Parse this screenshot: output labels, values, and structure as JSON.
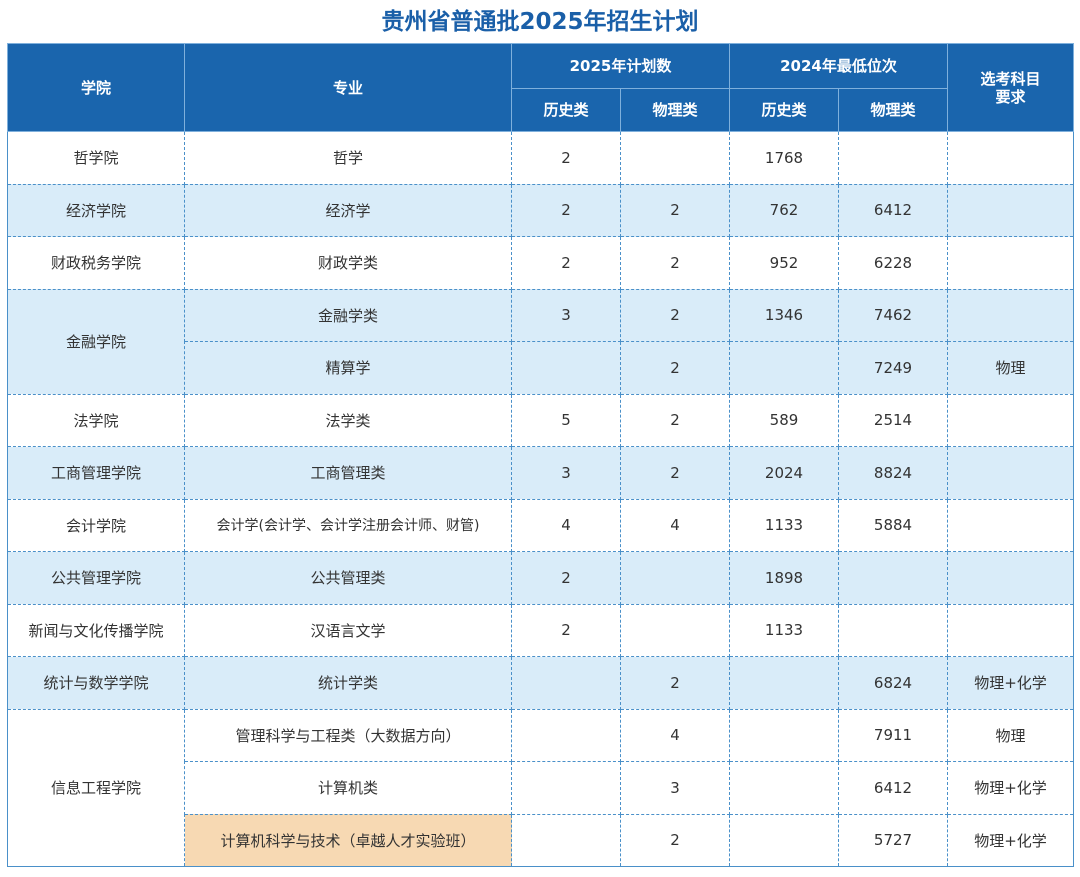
{
  "title": "贵州省普通批2025年招生计划",
  "header": {
    "college": "学院",
    "major": "专业",
    "plan_group": "2025年计划数",
    "rank_group": "2024年最低位次",
    "plan_history": "历史类",
    "plan_physics": "物理类",
    "rank_history": "历史类",
    "rank_physics": "物理类",
    "subject_req": "选考科目\n要求"
  },
  "rows": [
    {
      "college": "哲学院",
      "major": "哲学",
      "plan_h": "2",
      "plan_p": "",
      "rank_h": "1768",
      "rank_p": "",
      "req": ""
    },
    {
      "college": "经济学院",
      "major": "经济学",
      "plan_h": "2",
      "plan_p": "2",
      "rank_h": "762",
      "rank_p": "6412",
      "req": ""
    },
    {
      "college": "财政税务学院",
      "major": "财政学类",
      "plan_h": "2",
      "plan_p": "2",
      "rank_h": "952",
      "rank_p": "6228",
      "req": ""
    },
    {
      "college": "金融学院",
      "major": "金融学类",
      "plan_h": "3",
      "plan_p": "2",
      "rank_h": "1346",
      "rank_p": "7462",
      "req": ""
    },
    {
      "college": "",
      "major": "精算学",
      "plan_h": "",
      "plan_p": "2",
      "rank_h": "",
      "rank_p": "7249",
      "req": "物理"
    },
    {
      "college": "法学院",
      "major": "法学类",
      "plan_h": "5",
      "plan_p": "2",
      "rank_h": "589",
      "rank_p": "2514",
      "req": ""
    },
    {
      "college": "工商管理学院",
      "major": "工商管理类",
      "plan_h": "3",
      "plan_p": "2",
      "rank_h": "2024",
      "rank_p": "8824",
      "req": ""
    },
    {
      "college": "会计学院",
      "major": "会计学(会计学、会计学注册会计师、财管)",
      "plan_h": "4",
      "plan_p": "4",
      "rank_h": "1133",
      "rank_p": "5884",
      "req": ""
    },
    {
      "college": "公共管理学院",
      "major": "公共管理类",
      "plan_h": "2",
      "plan_p": "",
      "rank_h": "1898",
      "rank_p": "",
      "req": ""
    },
    {
      "college": "新闻与文化传播学院",
      "major": "汉语言文学",
      "plan_h": "2",
      "plan_p": "",
      "rank_h": "1133",
      "rank_p": "",
      "req": ""
    },
    {
      "college": "统计与数学学院",
      "major": "统计学类",
      "plan_h": "",
      "plan_p": "2",
      "rank_h": "",
      "rank_p": "6824",
      "req": "物理+化学"
    },
    {
      "college": "信息工程学院",
      "major": "管理科学与工程类（大数据方向）",
      "plan_h": "",
      "plan_p": "4",
      "rank_h": "",
      "rank_p": "7911",
      "req": "物理"
    },
    {
      "college": "",
      "major": "计算机类",
      "plan_h": "",
      "plan_p": "3",
      "rank_h": "",
      "rank_p": "6412",
      "req": "物理+化学"
    },
    {
      "college": "",
      "major": "计算机科学与技术（卓越人才实验班）",
      "plan_h": "",
      "plan_p": "2",
      "rank_h": "",
      "rank_p": "5727",
      "req": "物理+化学"
    }
  ]
}
